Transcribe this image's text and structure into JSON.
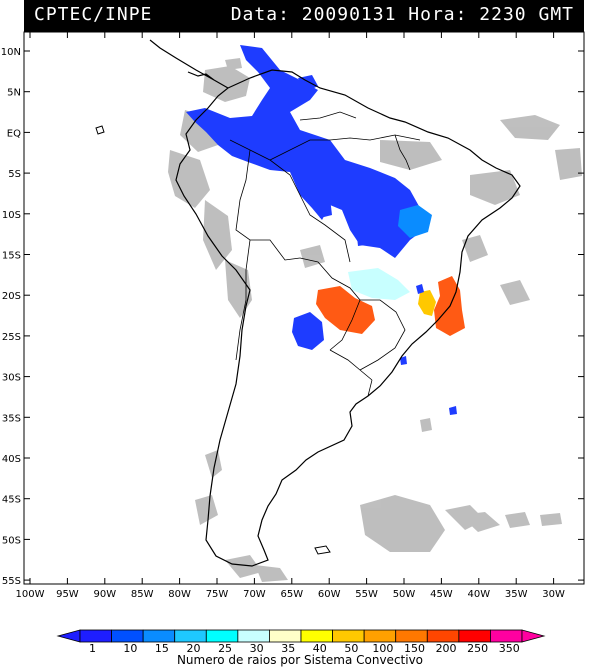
{
  "header": {
    "left": "CPTEC/INPE",
    "right": "Data: 20090131 Hora: 2230 GMT"
  },
  "lat_labels": [
    "10N",
    "5N",
    "EQ",
    "5S",
    "10S",
    "15S",
    "20S",
    "25S",
    "30S",
    "35S",
    "40S",
    "45S",
    "50S",
    "55S"
  ],
  "lon_labels": [
    "100W",
    "95W",
    "90W",
    "85W",
    "80W",
    "75W",
    "70W",
    "65W",
    "60W",
    "55W",
    "50W",
    "45W",
    "40W",
    "35W",
    "30W"
  ],
  "colorbar": {
    "values": [
      "1",
      "10",
      "15",
      "20",
      "25",
      "30",
      "35",
      "40",
      "50",
      "100",
      "150",
      "200",
      "250",
      "350"
    ],
    "colors": [
      "#1e1eff",
      "#0050ff",
      "#0a8cff",
      "#1ec8ff",
      "#00ffff",
      "#c8ffff",
      "#ffffc8",
      "#ffff00",
      "#ffc800",
      "#ffa000",
      "#ff7800",
      "#ff4600",
      "#ff0000",
      "#ff00a0"
    ],
    "caption": "Numero de raios por Sistema Convectivo"
  },
  "colors": {
    "clouds": "#b4b4b4",
    "coast": "#000000",
    "background": "#ffffff"
  }
}
